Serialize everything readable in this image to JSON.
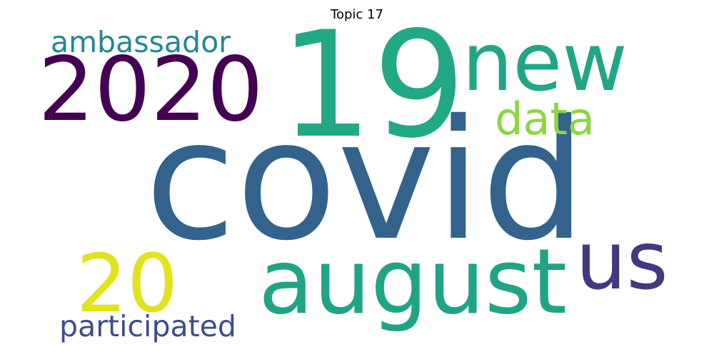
{
  "title": "Topic 17",
  "words": [
    {
      "text": "covid",
      "color": "#33638d"
    },
    {
      "text": "19",
      "color": "#22a884"
    },
    {
      "text": "2020",
      "color": "#440154"
    },
    {
      "text": "new",
      "color": "#21a685"
    },
    {
      "text": "august",
      "color": "#20a486"
    },
    {
      "text": "us",
      "color": "#453781"
    },
    {
      "text": "20",
      "color": "#e1e31d"
    },
    {
      "text": "data",
      "color": "#8ed542"
    },
    {
      "text": "ambassador",
      "color": "#23888e"
    },
    {
      "text": "participated",
      "color": "#3e4c8a"
    }
  ]
}
